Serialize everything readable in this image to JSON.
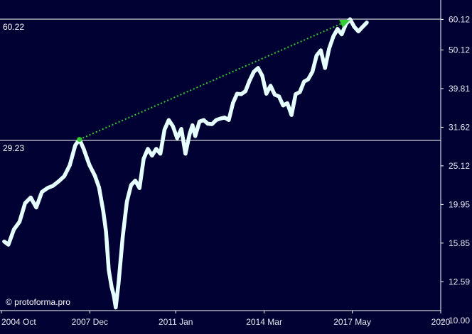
{
  "chart_data": {
    "type": "line",
    "xlim": [
      2004.7,
      2020.5
    ],
    "ylim": [
      10.6,
      67.5
    ],
    "log_scale_y": true,
    "y_ticks": [
      {
        "label": "60.12",
        "value": 60.12
      },
      {
        "label": "50.12",
        "value": 50.12
      },
      {
        "label": "39.81",
        "value": 39.81
      },
      {
        "label": "31.62",
        "value": 31.62
      },
      {
        "label": "25.12",
        "value": 25.12
      },
      {
        "label": "19.95",
        "value": 19.95
      },
      {
        "label": "15.85",
        "value": 15.85
      },
      {
        "label": "12.59",
        "value": 12.59
      },
      {
        "label": "10.00",
        "value": 10.0
      }
    ],
    "x_ticks": [
      {
        "label": "2004 Oct",
        "value": 2004.75
      },
      {
        "label": "2007 Dec",
        "value": 2007.92
      },
      {
        "label": "2011 Jan",
        "value": 2011.0
      },
      {
        "label": "2014 Mar",
        "value": 2014.17
      },
      {
        "label": "2017 May",
        "value": 2017.33
      },
      {
        "label": "2020",
        "value": 2020.5
      }
    ],
    "ref_lines": [
      {
        "label": "60.22",
        "value": 60.22
      },
      {
        "label": "29.23",
        "value": 29.23
      }
    ],
    "arrow": {
      "from": {
        "x": 2007.55,
        "y": 29.4
      },
      "to": {
        "x": 2017.25,
        "y": 60.0
      },
      "color": "#33cc33"
    },
    "series": [
      {
        "color": "#e6ffff",
        "x": [
          2004.85,
          2005.0,
          2005.2,
          2005.4,
          2005.6,
          2005.8,
          2006.0,
          2006.2,
          2006.4,
          2006.6,
          2006.8,
          2007.0,
          2007.2,
          2007.4,
          2007.55,
          2007.7,
          2007.9,
          2008.1,
          2008.25,
          2008.4,
          2008.5,
          2008.6,
          2008.7,
          2008.78,
          2008.85,
          2008.95,
          2009.1,
          2009.25,
          2009.4,
          2009.55,
          2009.7,
          2009.85,
          2010.0,
          2010.15,
          2010.3,
          2010.45,
          2010.6,
          2010.75,
          2010.9,
          2011.05,
          2011.2,
          2011.35,
          2011.5,
          2011.6,
          2011.7,
          2011.85,
          2012.0,
          2012.15,
          2012.3,
          2012.45,
          2012.6,
          2012.75,
          2012.9,
          2013.05,
          2013.2,
          2013.35,
          2013.5,
          2013.65,
          2013.8,
          2013.95,
          2014.1,
          2014.25,
          2014.4,
          2014.55,
          2014.7,
          2014.85,
          2015.0,
          2015.15,
          2015.3,
          2015.45,
          2015.6,
          2015.75,
          2015.9,
          2016.05,
          2016.2,
          2016.35,
          2016.5,
          2016.65,
          2016.8,
          2016.95,
          2017.1,
          2017.25,
          2017.4,
          2017.55,
          2017.7,
          2017.85
        ],
        "y": [
          16.0,
          15.7,
          17.2,
          18.0,
          20.1,
          20.8,
          19.6,
          21.5,
          22.0,
          22.3,
          22.9,
          23.6,
          25.2,
          28.4,
          29.4,
          27.8,
          25.3,
          23.7,
          22.1,
          19.2,
          17.0,
          13.5,
          12.2,
          11.6,
          10.8,
          12.5,
          16.5,
          20.3,
          22.4,
          23.0,
          22.0,
          26.2,
          27.8,
          26.7,
          27.8,
          27.0,
          31.2,
          33.0,
          31.8,
          29.6,
          31.3,
          27.0,
          30.4,
          32.0,
          30.0,
          32.7,
          33.0,
          32.3,
          32.2,
          33.0,
          33.3,
          33.5,
          33.0,
          36.5,
          38.6,
          38.5,
          39.2,
          41.8,
          44.0,
          45.0,
          43.0,
          38.6,
          40.5,
          38.4,
          38.0,
          36.0,
          36.5,
          34.0,
          38.5,
          39.0,
          41.5,
          42.1,
          44.0,
          48.5,
          50.0,
          45.0,
          50.5,
          54.3,
          56.8,
          55.0,
          58.5,
          60.2,
          57.5,
          56.0,
          57.5,
          59.0
        ]
      }
    ]
  },
  "watermark": "© protoforma.pro"
}
